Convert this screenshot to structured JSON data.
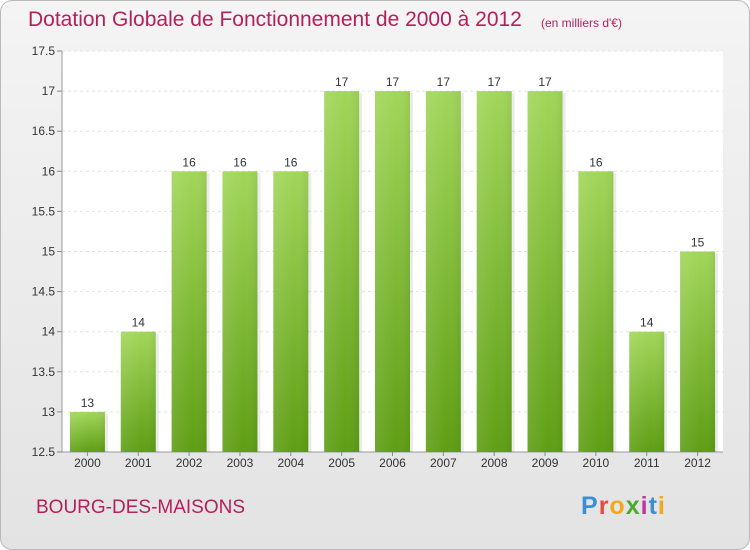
{
  "header": {
    "title": "Dotation Globale de Fonctionnement de 2000 à 2012",
    "units": "(en milliers d'€)"
  },
  "footer": {
    "commune": "BOURG-DES-MAISONS",
    "logo": "Proxiti"
  },
  "colors": {
    "title": "#b4215a",
    "bar_top": "#a2d65a",
    "bar_bottom": "#5e9e14"
  },
  "chart_data": {
    "type": "bar",
    "categories": [
      "2000",
      "2001",
      "2002",
      "2003",
      "2004",
      "2005",
      "2006",
      "2007",
      "2008",
      "2009",
      "2010",
      "2011",
      "2012"
    ],
    "values": [
      13,
      14,
      16,
      16,
      16,
      17,
      17,
      17,
      17,
      17,
      16,
      14,
      15
    ],
    "labels": [
      "13",
      "14",
      "16",
      "16",
      "16",
      "17",
      "17",
      "17",
      "17",
      "17",
      "16",
      "14",
      "15"
    ],
    "ylim": [
      12.5,
      17.5
    ],
    "yticks": [
      12.5,
      13,
      13.5,
      14,
      14.5,
      15,
      15.5,
      16,
      16.5,
      17,
      17.5
    ],
    "ytick_labels": [
      "12.5",
      "13",
      "13.5",
      "14",
      "14.5",
      "15",
      "15.5",
      "16",
      "16.5",
      "17",
      "17.5"
    ],
    "grid": true,
    "legend": "none"
  }
}
